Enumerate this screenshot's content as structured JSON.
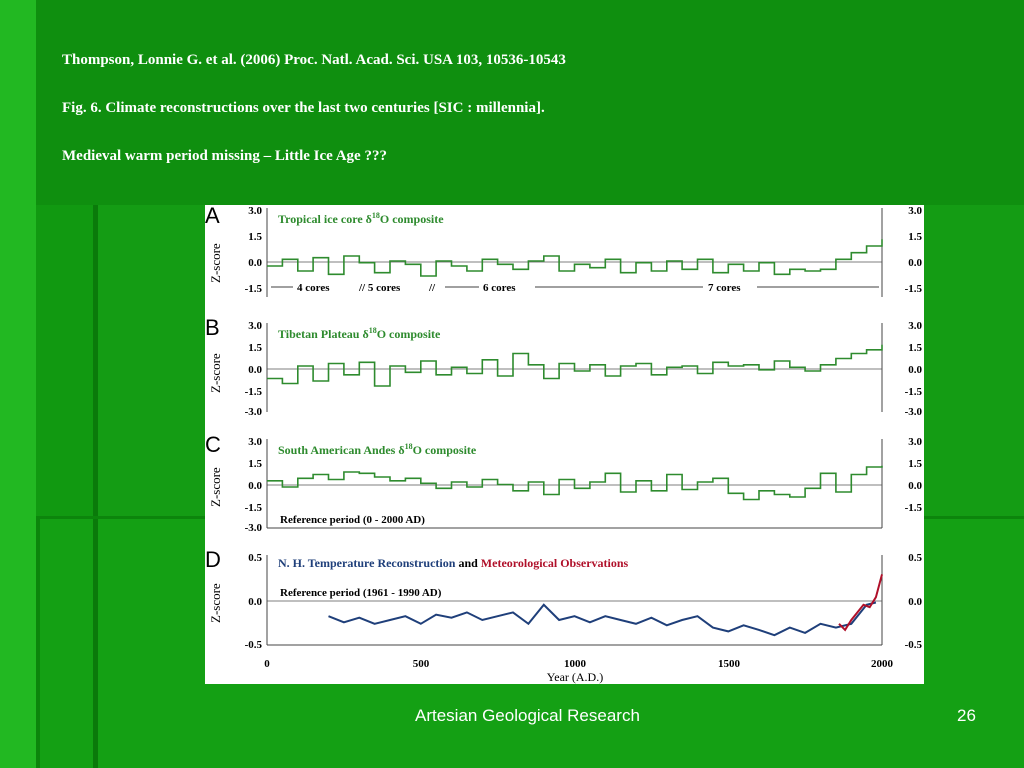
{
  "slide": {
    "citation": "Thompson, Lonnie G. et al. (2006) Proc. Natl. Acad. Sci. USA 103, 10536-10543",
    "caption": "Fig. 6. Climate reconstructions over the last two centuries [SIC : millennia].",
    "remark": "Medieval warm period missing – Little Ice Age ???",
    "footer": "Artesian Geological Research",
    "page_number": "26"
  },
  "colors": {
    "background": "#119911",
    "series_green": "#2e8b2e",
    "nh_blue": "#1f3f7a",
    "obs_red": "#b0102a"
  },
  "figure": {
    "axis_title_z": "Z-score",
    "x_axis_title": "Year (A.D.)",
    "x_ticks": [
      "0",
      "500",
      "1000",
      "1500",
      "2000"
    ],
    "panels": [
      {
        "letter": "A",
        "title_prefix": "Tropical ice core δ",
        "title_sup": "18",
        "title_suffix": "O composite",
        "y_ticks": [
          "3.0",
          "1.5",
          "0.0",
          "-1.5"
        ],
        "segments": [
          {
            "label": "4 cores"
          },
          {
            "label": "// 5 cores"
          },
          {
            "label": "//"
          },
          {
            "label": "6 cores"
          },
          {
            "label": "7 cores"
          }
        ]
      },
      {
        "letter": "B",
        "title_prefix": "Tibetan Plateau δ",
        "title_sup": "18",
        "title_suffix": "O composite",
        "y_ticks": [
          "3.0",
          "1.5",
          "0.0",
          "-1.5",
          "-3.0"
        ]
      },
      {
        "letter": "C",
        "title_prefix": "South American Andes δ",
        "title_sup": "18",
        "title_suffix": "O composite",
        "y_ticks": [
          "3.0",
          "1.5",
          "0.0",
          "-1.5",
          "-3.0"
        ],
        "reference": "Reference period (0 - 2000 AD)"
      },
      {
        "letter": "D",
        "title_part1": "N. H. Temperature Reconstruction",
        "title_part2": " and ",
        "title_part3": "Meteorological Observations",
        "y_ticks": [
          "0.5",
          "0.0",
          "-0.5"
        ],
        "reference": "Reference period (1961 - 1990 AD)"
      }
    ]
  },
  "chart_data": [
    {
      "type": "line",
      "panel": "A",
      "title": "Tropical ice core δ18O composite",
      "ylabel": "Z-score",
      "ylim": [
        -1.5,
        3.0
      ],
      "xlim": [
        0,
        2000
      ],
      "step": "true",
      "x": [
        0,
        50,
        100,
        150,
        200,
        250,
        300,
        350,
        400,
        450,
        500,
        550,
        600,
        650,
        700,
        750,
        800,
        850,
        900,
        950,
        1000,
        1050,
        1100,
        1150,
        1200,
        1250,
        1300,
        1350,
        1400,
        1450,
        1500,
        1550,
        1600,
        1650,
        1700,
        1750,
        1800,
        1850,
        1900,
        1950,
        2000
      ],
      "y": [
        0.0,
        0.4,
        -0.3,
        0.5,
        -0.5,
        0.6,
        0.2,
        -0.4,
        0.3,
        0.1,
        -0.6,
        0.3,
        0.0,
        -0.3,
        0.4,
        0.1,
        -0.2,
        0.3,
        0.6,
        -0.3,
        0.1,
        -0.1,
        0.4,
        -0.4,
        0.2,
        -0.3,
        0.3,
        -0.2,
        0.4,
        -0.4,
        0.1,
        -0.3,
        0.2,
        -0.5,
        -0.2,
        -0.3,
        -0.2,
        0.4,
        0.8,
        1.2,
        1.6
      ]
    },
    {
      "type": "line",
      "panel": "B",
      "title": "Tibetan Plateau δ18O composite",
      "ylabel": "Z-score",
      "ylim": [
        -3.0,
        3.0
      ],
      "xlim": [
        0,
        2000
      ],
      "step": "true",
      "x": [
        0,
        50,
        100,
        150,
        200,
        250,
        300,
        350,
        400,
        450,
        500,
        550,
        600,
        650,
        700,
        750,
        800,
        850,
        900,
        950,
        1000,
        1050,
        1100,
        1150,
        1200,
        1250,
        1300,
        1350,
        1400,
        1450,
        1500,
        1550,
        1600,
        1650,
        1700,
        1750,
        1800,
        1850,
        1900,
        1950,
        2000
      ],
      "y": [
        -0.8,
        -1.2,
        0.2,
        -1.0,
        0.4,
        -0.5,
        0.5,
        -1.4,
        0.2,
        -0.3,
        0.6,
        -0.5,
        0.1,
        -0.4,
        0.7,
        -0.6,
        1.2,
        0.3,
        -0.8,
        0.4,
        -0.2,
        0.3,
        -0.6,
        0.2,
        0.4,
        -0.5,
        0.1,
        0.2,
        -0.4,
        0.5,
        0.2,
        0.3,
        -0.1,
        0.6,
        0.1,
        -0.2,
        0.3,
        0.8,
        1.2,
        1.5,
        1.9
      ]
    },
    {
      "type": "line",
      "panel": "C",
      "title": "South American Andes δ18O composite",
      "ylabel": "Z-score",
      "ylim": [
        -3.0,
        3.0
      ],
      "xlim": [
        0,
        2000
      ],
      "step": "true",
      "x": [
        0,
        50,
        100,
        150,
        200,
        250,
        300,
        350,
        400,
        450,
        500,
        550,
        600,
        650,
        700,
        750,
        800,
        850,
        900,
        950,
        1000,
        1050,
        1100,
        1150,
        1200,
        1250,
        1300,
        1350,
        1400,
        1450,
        1500,
        1550,
        1600,
        1650,
        1700,
        1750,
        1800,
        1850,
        1900,
        1950,
        2000
      ],
      "y": [
        0.3,
        -0.2,
        0.5,
        0.8,
        0.4,
        1.0,
        0.9,
        0.6,
        0.3,
        0.5,
        0.1,
        -0.3,
        0.2,
        -0.2,
        0.4,
        0.0,
        -0.5,
        0.2,
        -0.8,
        0.4,
        -0.3,
        0.2,
        0.9,
        -0.6,
        0.3,
        -0.5,
        0.8,
        -0.4,
        0.2,
        0.5,
        -0.7,
        -1.2,
        -0.5,
        -0.8,
        -1.0,
        -0.3,
        0.9,
        -0.6,
        0.8,
        1.4,
        1.5
      ]
    },
    {
      "type": "line",
      "panel": "D",
      "title": "N. H. Temperature Reconstruction and Meteorological Observations",
      "ylabel": "Z-score",
      "ylim": [
        -0.5,
        0.5
      ],
      "xlim": [
        0,
        2000
      ],
      "series": [
        {
          "name": "N. H. Temperature Reconstruction",
          "x": [
            200,
            250,
            300,
            350,
            400,
            450,
            500,
            550,
            600,
            650,
            700,
            750,
            800,
            850,
            900,
            950,
            1000,
            1050,
            1100,
            1150,
            1200,
            1250,
            1300,
            1350,
            1400,
            1450,
            1500,
            1550,
            1600,
            1650,
            1700,
            1750,
            1800,
            1850,
            1900,
            1950,
            1980
          ],
          "y": [
            -0.2,
            -0.28,
            -0.22,
            -0.3,
            -0.25,
            -0.2,
            -0.3,
            -0.18,
            -0.22,
            -0.15,
            -0.25,
            -0.2,
            -0.15,
            -0.3,
            -0.05,
            -0.25,
            -0.2,
            -0.28,
            -0.2,
            -0.25,
            -0.3,
            -0.22,
            -0.32,
            -0.25,
            -0.2,
            -0.35,
            -0.4,
            -0.32,
            -0.38,
            -0.45,
            -0.35,
            -0.42,
            -0.3,
            -0.35,
            -0.3,
            -0.05,
            -0.02
          ]
        },
        {
          "name": "Meteorological Observations",
          "x": [
            1860,
            1880,
            1900,
            1920,
            1940,
            1960,
            1980,
            2000
          ],
          "y": [
            -0.3,
            -0.38,
            -0.25,
            -0.15,
            -0.05,
            -0.08,
            0.05,
            0.35
          ]
        }
      ]
    }
  ]
}
